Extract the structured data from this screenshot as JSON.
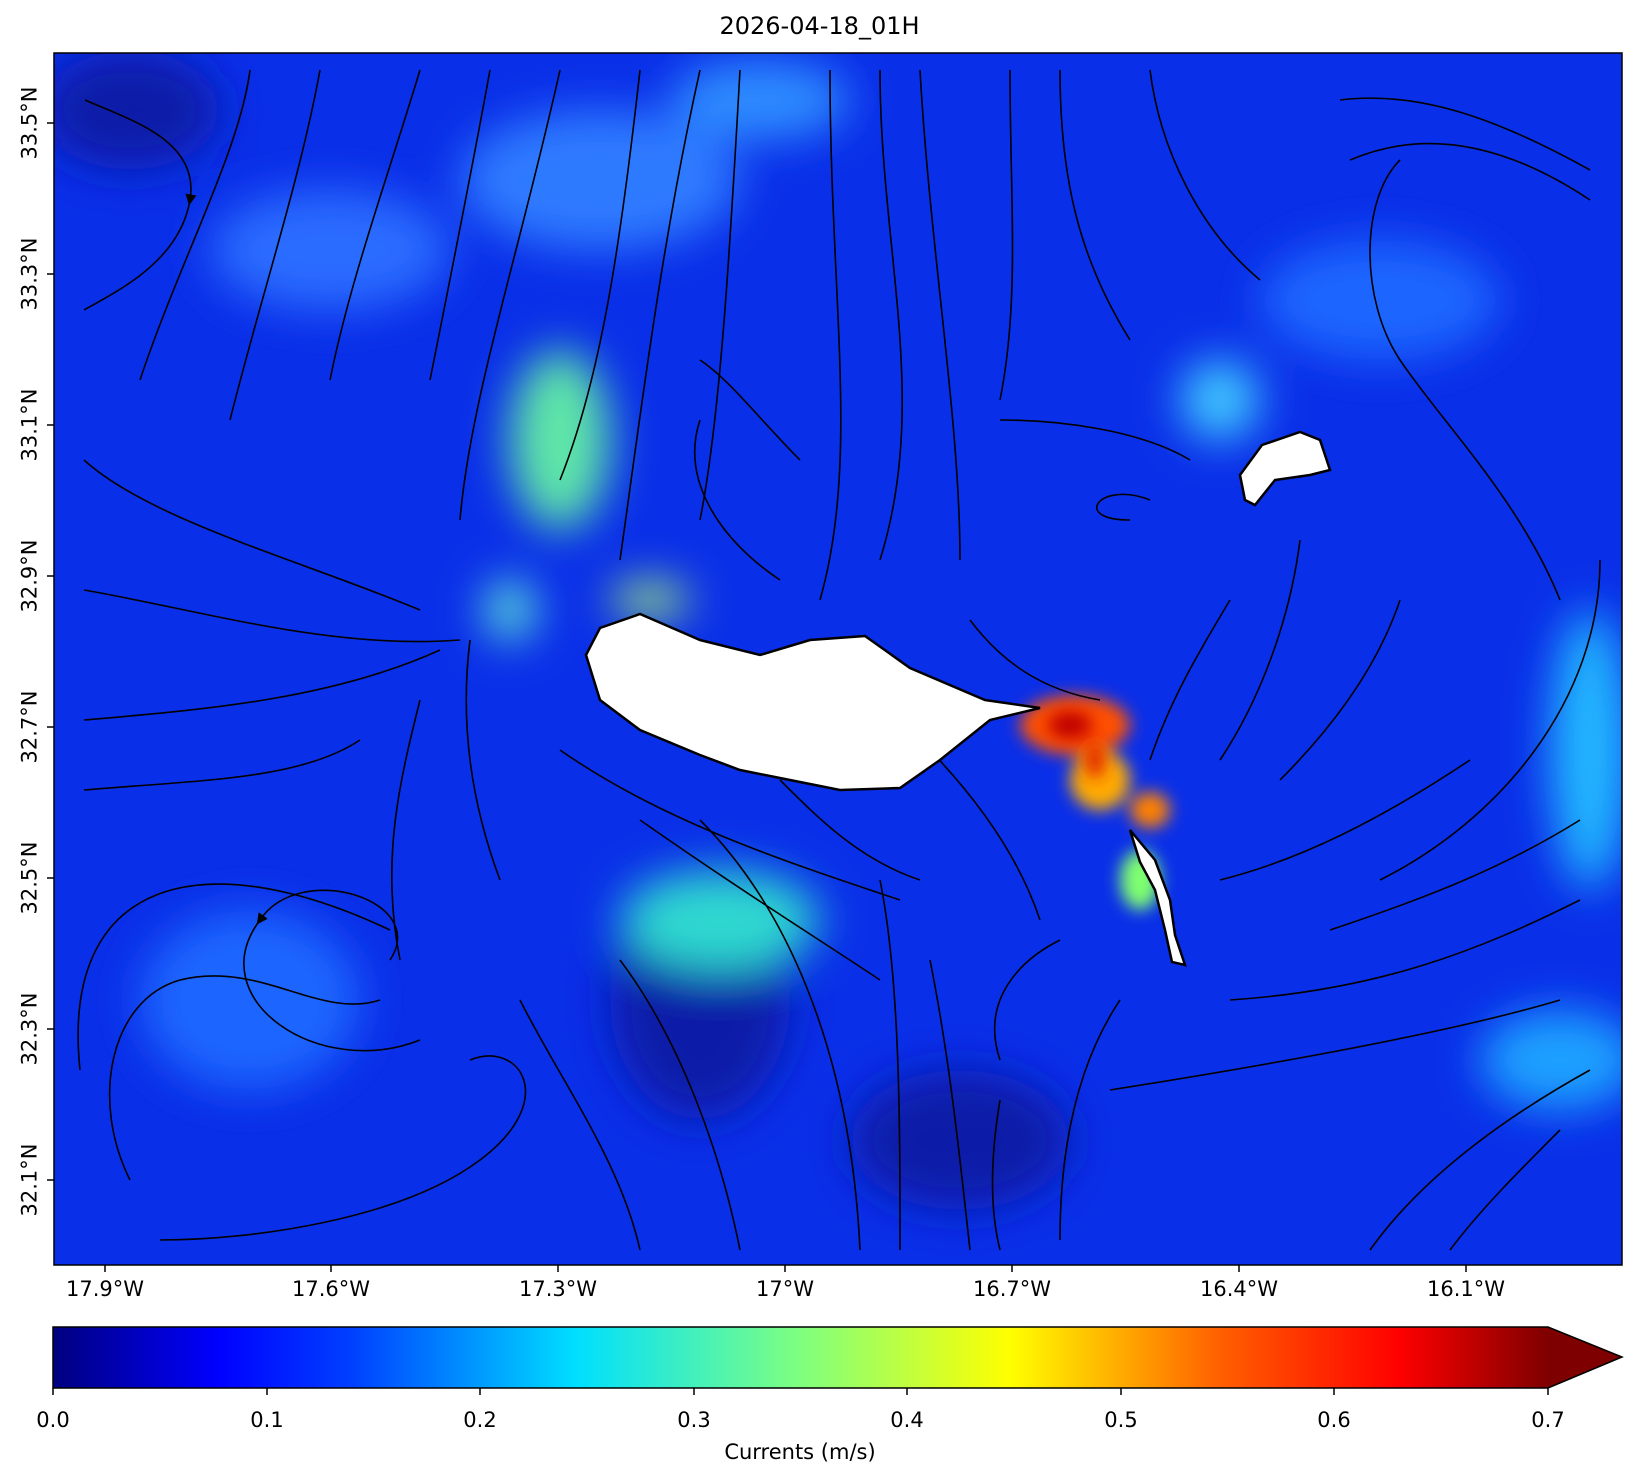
{
  "title": "2026-04-18_01H",
  "map": {
    "lon_range": [
      -18.0,
      -15.9
    ],
    "lat_range": [
      32.0,
      33.6
    ],
    "x_ticks": [
      "17.9°W",
      "17.6°W",
      "17.3°W",
      "17°W",
      "16.7°W",
      "16.4°W",
      "16.1°W"
    ],
    "y_ticks": [
      "33.5°N",
      "33.3°N",
      "33.1°N",
      "32.9°N",
      "32.7°N",
      "32.5°N",
      "32.3°N",
      "32.1°N"
    ],
    "features": [
      "madeira-island",
      "porto-santo-island",
      "desertas-islands"
    ],
    "field": "ocean current speed with streamlines"
  },
  "colorbar": {
    "label": "Currents (m/s)",
    "ticks": [
      "0.0",
      "0.1",
      "0.2",
      "0.3",
      "0.4",
      "0.5",
      "0.6",
      "0.7"
    ],
    "range": [
      0.0,
      0.7
    ],
    "extend": "max",
    "colormap": "jet",
    "colors": [
      "#00007f",
      "#0000ff",
      "#007fff",
      "#00ffff",
      "#7fff7f",
      "#ffff00",
      "#ff7f00",
      "#ff0000",
      "#7f0000"
    ]
  }
}
